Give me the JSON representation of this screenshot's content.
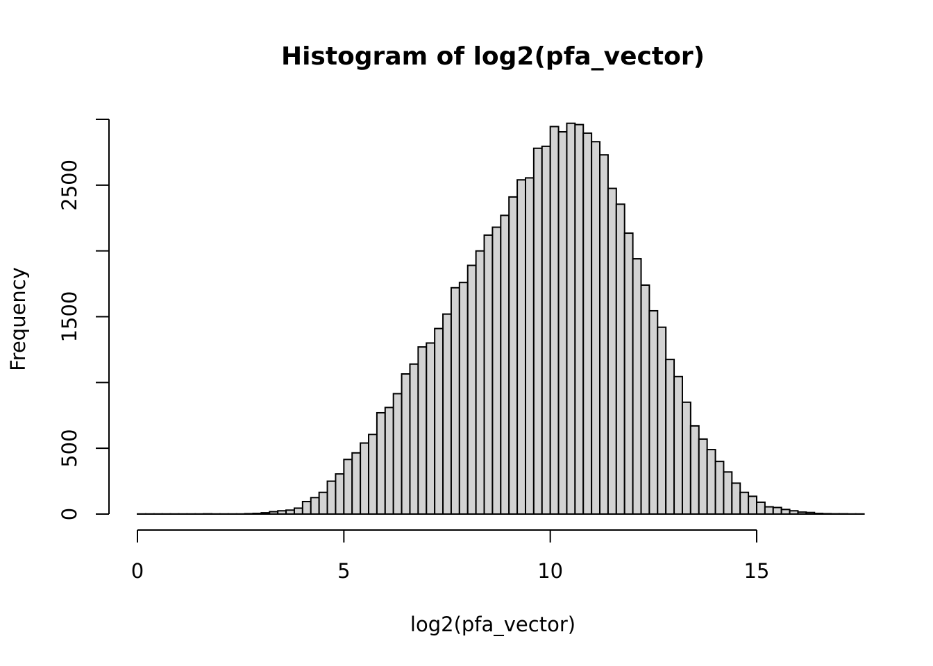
{
  "chart_data": {
    "type": "bar",
    "title": "Histogram of log2(pfa_vector)",
    "xlabel": "log2(pfa_vector)",
    "ylabel": "Frequency",
    "xlim": [
      0,
      17.2
    ],
    "ylim": [
      0,
      3000
    ],
    "x_ticks": [
      0,
      5,
      10,
      15
    ],
    "y_ticks": [
      0,
      500,
      1000,
      1500,
      2000,
      2500,
      3000
    ],
    "y_tick_labels": [
      "0",
      "500",
      "",
      "1500",
      "",
      "2500",
      ""
    ],
    "bin_start": 0,
    "bin_width": 0.2,
    "values": [
      1,
      1,
      1,
      1,
      1,
      1,
      1,
      1,
      2,
      1,
      1,
      1,
      1,
      3,
      5,
      10,
      18,
      25,
      30,
      45,
      95,
      125,
      165,
      250,
      305,
      415,
      465,
      540,
      605,
      770,
      810,
      915,
      1065,
      1140,
      1270,
      1300,
      1410,
      1520,
      1720,
      1760,
      1890,
      2000,
      2120,
      2180,
      2270,
      2410,
      2540,
      2555,
      2780,
      2795,
      2945,
      2905,
      2970,
      2960,
      2895,
      2830,
      2730,
      2475,
      2355,
      2135,
      1940,
      1740,
      1545,
      1420,
      1175,
      1045,
      850,
      670,
      570,
      490,
      400,
      320,
      235,
      165,
      135,
      90,
      55,
      50,
      35,
      25,
      15,
      12,
      5,
      3,
      2,
      2,
      1,
      1
    ]
  }
}
